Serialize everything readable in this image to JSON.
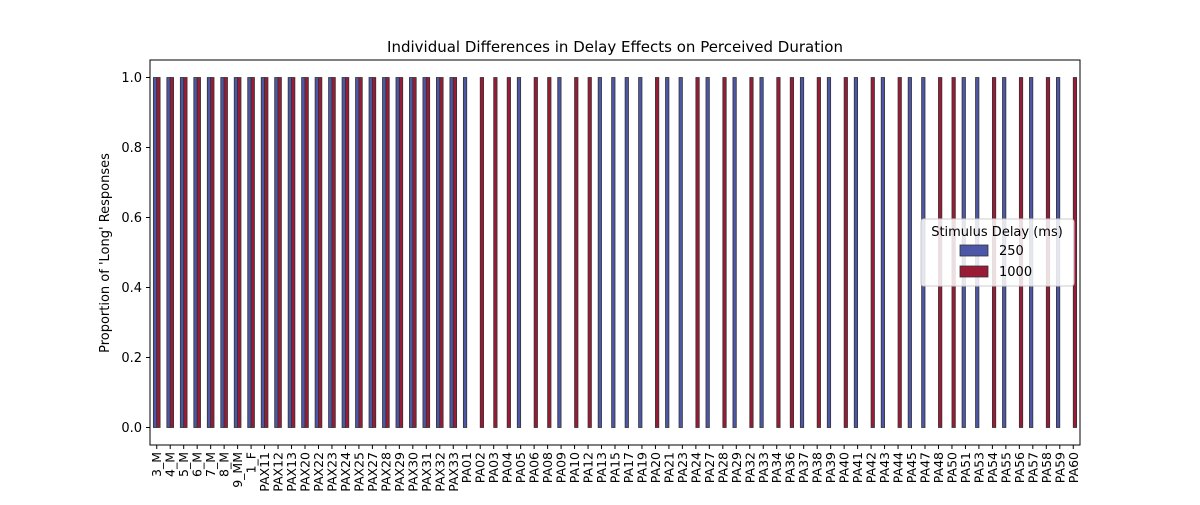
{
  "chart_data": {
    "type": "bar",
    "title": "Individual Differences in Delay Effects on Perceived Duration",
    "xlabel": "",
    "ylabel": "Proportion of 'Long' Responses",
    "ylim": [
      -0.05,
      1.05
    ],
    "yticks": [
      0.0,
      0.2,
      0.4,
      0.6,
      0.8,
      1.0
    ],
    "ytick_labels": [
      "0.0",
      "0.2",
      "0.4",
      "0.6",
      "0.8",
      "1.0"
    ],
    "grid": false,
    "legend": {
      "title": "Stimulus Delay (ms)",
      "placement": "center-right"
    },
    "categories": [
      "3_M",
      "4_M",
      "5_M",
      "6_M",
      "7_M",
      "8_M",
      "9_MM",
      "1_F",
      "PAX11",
      "PAX12",
      "PAX13",
      "PAX20",
      "PAX22",
      "PAX23",
      "PAX24",
      "PAX25",
      "PAX27",
      "PAX28",
      "PAX29",
      "PAX30",
      "PAX31",
      "PAX32",
      "PAX33",
      "PA01",
      "PA02",
      "PA03",
      "PA04",
      "PA05",
      "PA06",
      "PA08",
      "PA09",
      "PA10",
      "PA12",
      "PA13",
      "PA15",
      "PA17",
      "PA19",
      "PA20",
      "PA21",
      "PA23",
      "PA24",
      "PA27",
      "PA28",
      "PA29",
      "PA32",
      "PA33",
      "PA34",
      "PA36",
      "PA37",
      "PA38",
      "PA39",
      "PA40",
      "PA41",
      "PA42",
      "PA43",
      "PA44",
      "PA45",
      "PA47",
      "PA48",
      "PA50",
      "PA51",
      "PA53",
      "PA54",
      "PA55",
      "PA56",
      "PA57",
      "PA58",
      "PA59",
      "PA60"
    ],
    "series": [
      {
        "name": "250",
        "color": "#4c57a8",
        "values": [
          1,
          1,
          1,
          1,
          1,
          1,
          1,
          1,
          1,
          1,
          1,
          1,
          1,
          1,
          1,
          1,
          1,
          1,
          1,
          1,
          1,
          1,
          1,
          1,
          0,
          0,
          0,
          1,
          0,
          0,
          1,
          0,
          0,
          1,
          1,
          1,
          1,
          0,
          1,
          1,
          0,
          1,
          0,
          1,
          0,
          1,
          0,
          0,
          1,
          0,
          1,
          0,
          1,
          0,
          1,
          0,
          1,
          1,
          0,
          0,
          1,
          1,
          0,
          1,
          0,
          1,
          0,
          1,
          0
        ]
      },
      {
        "name": "1000",
        "color": "#9a1b35",
        "values": [
          1,
          1,
          1,
          1,
          1,
          1,
          1,
          1,
          1,
          1,
          1,
          1,
          1,
          1,
          1,
          1,
          1,
          1,
          1,
          1,
          1,
          1,
          1,
          0,
          1,
          1,
          1,
          0,
          1,
          1,
          0,
          1,
          1,
          0,
          0,
          0,
          0,
          1,
          0,
          0,
          1,
          0,
          1,
          0,
          1,
          0,
          1,
          1,
          0,
          1,
          0,
          1,
          0,
          1,
          0,
          1,
          0,
          0,
          1,
          1,
          0,
          0,
          1,
          0,
          1,
          0,
          1,
          0,
          1
        ]
      }
    ]
  }
}
